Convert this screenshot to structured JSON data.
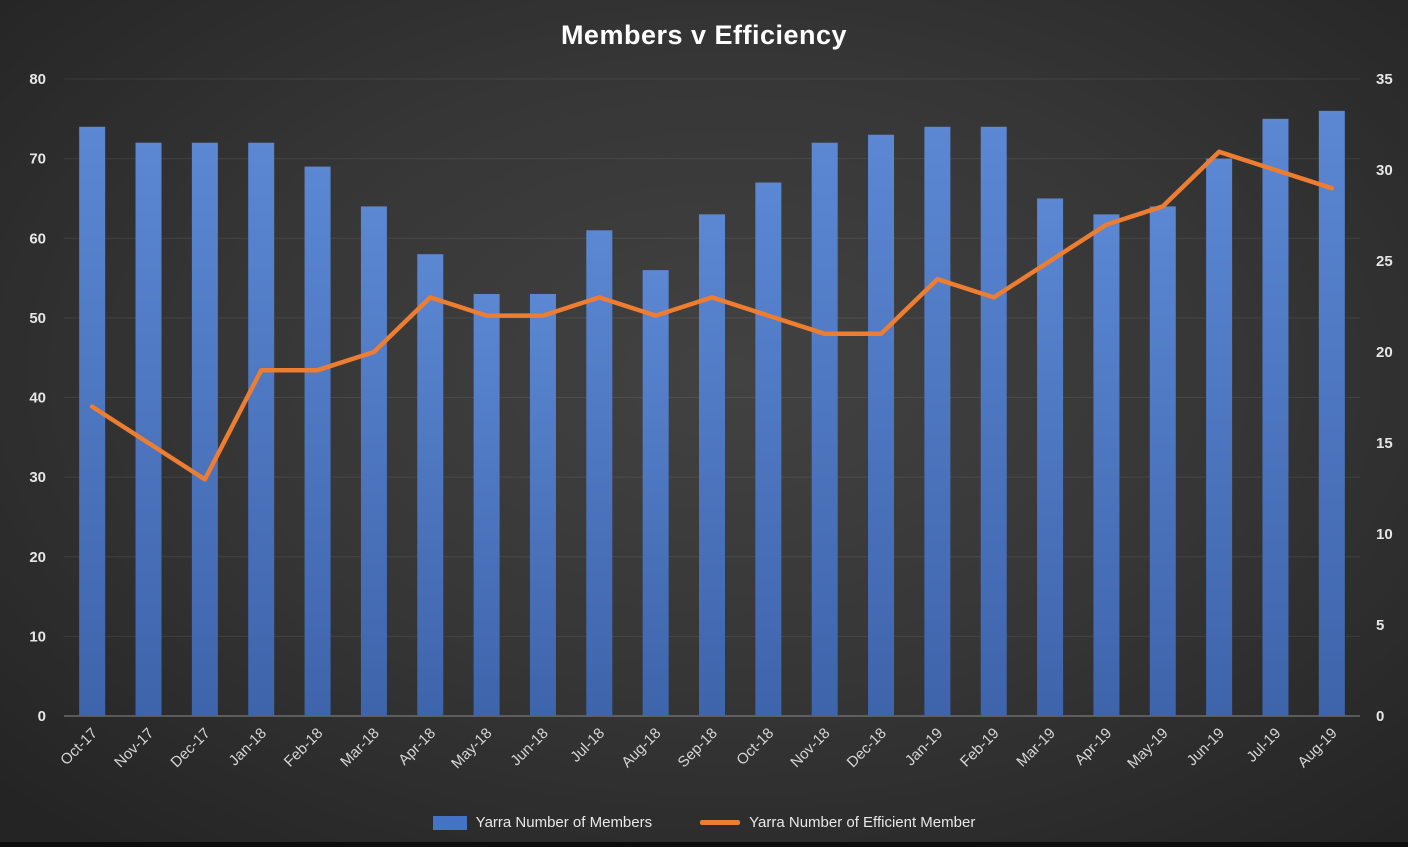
{
  "title": "Members v Efficiency",
  "chart_data": {
    "type": "combo-bar-line",
    "title": "Members v Efficiency",
    "categories": [
      "Oct-17",
      "Nov-17",
      "Dec-17",
      "Jan-18",
      "Feb-18",
      "Mar-18",
      "Apr-18",
      "May-18",
      "Jun-18",
      "Jul-18",
      "Aug-18",
      "Sep-18",
      "Oct-18",
      "Nov-18",
      "Dec-18",
      "Jan-19",
      "Feb-19",
      "Mar-19",
      "Apr-19",
      "May-19",
      "Jun-19",
      "Jul-19",
      "Aug-19"
    ],
    "series": [
      {
        "name": "Yarra Number of Members",
        "type": "bar",
        "axis": "left",
        "color": "#4472C4",
        "values": [
          74,
          72,
          72,
          72,
          69,
          64,
          58,
          53,
          53,
          61,
          56,
          63,
          67,
          72,
          73,
          74,
          74,
          65,
          63,
          64,
          70,
          75,
          76
        ]
      },
      {
        "name": "Yarra Number of Efficient Member",
        "type": "line",
        "axis": "right",
        "color": "#ED7D31",
        "values": [
          17,
          15,
          13,
          19,
          19,
          20,
          23,
          22,
          22,
          23,
          22,
          23,
          22,
          21,
          21,
          24,
          23,
          25,
          27,
          28,
          31,
          30,
          29
        ]
      }
    ],
    "left_axis": {
      "min": 0,
      "max": 80,
      "step": 10,
      "ticks": [
        0,
        10,
        20,
        30,
        40,
        50,
        60,
        70,
        80
      ]
    },
    "right_axis": {
      "min": 0,
      "max": 35,
      "step": 5,
      "ticks": [
        0,
        5,
        10,
        15,
        20,
        25,
        30,
        35
      ]
    },
    "grid": true,
    "legend_position": "bottom"
  },
  "colors": {
    "background_center": "#424242",
    "background_edge": "#242424",
    "bar": "#4472C4",
    "bar_gradient_top": "#5b87d3",
    "bar_gradient_bottom": "#3e64ab",
    "line": "#ED7D31",
    "axis_text": "#e6e6e6",
    "x_axis_text": "#d6d6d6",
    "gridline": "rgba(255,255,255,0.08)",
    "axis_line": "#8a8a8a",
    "title_text": "#ffffff"
  }
}
